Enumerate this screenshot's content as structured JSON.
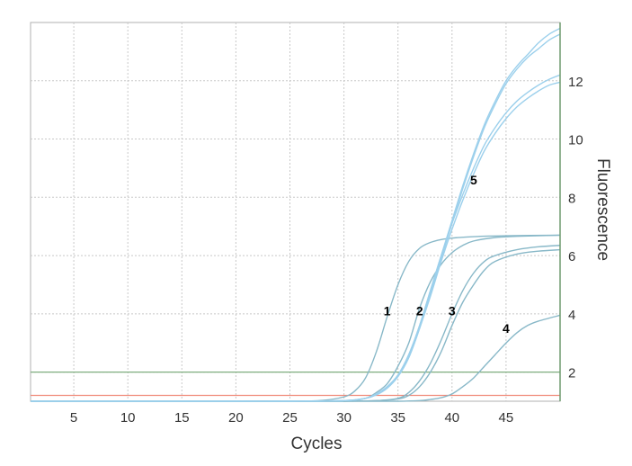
{
  "chart_data": {
    "type": "line",
    "title": "",
    "xlabel": "Cycles",
    "ylabel": "Fluorescence",
    "xlim": [
      1,
      50
    ],
    "ylim": [
      1,
      14
    ],
    "x_ticks": [
      5,
      10,
      15,
      20,
      25,
      30,
      35,
      40,
      45
    ],
    "y_ticks": [
      2,
      4,
      6,
      8,
      10,
      12
    ],
    "grid": true,
    "y_axis_side": "right",
    "threshold_lines": [
      {
        "y": 2.0,
        "color": "#7fae7f"
      },
      {
        "y": 1.2,
        "color": "#f08a7a"
      }
    ],
    "series": [
      {
        "label": "1",
        "color": "#88b8c8",
        "label_pos": [
          34,
          4.1
        ],
        "x": [
          1,
          5,
          10,
          15,
          20,
          25,
          28,
          30,
          31,
          32,
          33,
          34,
          35,
          36,
          37,
          38,
          39,
          40,
          42,
          45,
          50
        ],
        "y": [
          1.0,
          1.0,
          1.0,
          1.0,
          1.0,
          1.0,
          1.03,
          1.15,
          1.35,
          1.8,
          2.7,
          3.9,
          5.0,
          5.8,
          6.25,
          6.45,
          6.55,
          6.6,
          6.65,
          6.68,
          6.7
        ]
      },
      {
        "label": "2",
        "color": "#88b8c8",
        "label_pos": [
          37,
          4.1
        ],
        "x": [
          1,
          5,
          10,
          15,
          20,
          25,
          30,
          32,
          33,
          34,
          35,
          36,
          37,
          38,
          39,
          40,
          41,
          42,
          44,
          46,
          50
        ],
        "y": [
          1.0,
          1.0,
          1.0,
          1.0,
          1.0,
          1.0,
          1.02,
          1.1,
          1.3,
          1.6,
          2.2,
          3.0,
          4.2,
          5.1,
          5.7,
          6.1,
          6.35,
          6.5,
          6.62,
          6.66,
          6.7
        ]
      },
      {
        "label": "3",
        "color": "#88b8c8",
        "label_pos": [
          40,
          4.1
        ],
        "x": [
          1,
          5,
          10,
          15,
          20,
          25,
          30,
          33,
          35,
          36,
          37,
          38,
          39,
          40,
          41,
          42,
          43,
          44,
          46,
          48,
          50
        ],
        "y": [
          1.0,
          1.0,
          1.0,
          1.0,
          1.0,
          1.0,
          1.0,
          1.02,
          1.1,
          1.3,
          1.7,
          2.3,
          3.1,
          4.0,
          4.8,
          5.4,
          5.8,
          6.0,
          6.2,
          6.3,
          6.35
        ]
      },
      {
        "label": "3",
        "color": "#88b8c8",
        "label_pos": null,
        "x": [
          1,
          5,
          10,
          15,
          20,
          25,
          30,
          33,
          35,
          36,
          37,
          38,
          39,
          40,
          41,
          42,
          43,
          44,
          46,
          48,
          50
        ],
        "y": [
          1.0,
          1.0,
          1.0,
          1.0,
          1.0,
          1.0,
          1.0,
          1.02,
          1.08,
          1.2,
          1.5,
          2.0,
          2.7,
          3.6,
          4.4,
          5.0,
          5.5,
          5.8,
          6.05,
          6.15,
          6.2
        ]
      },
      {
        "label": "4",
        "color": "#88b8c8",
        "label_pos": [
          45,
          3.5
        ],
        "x": [
          1,
          5,
          10,
          15,
          20,
          25,
          30,
          35,
          37,
          38,
          39,
          40,
          41,
          42,
          43,
          44,
          45,
          46,
          47,
          48,
          50
        ],
        "y": [
          1.0,
          1.0,
          1.0,
          1.0,
          1.0,
          1.0,
          1.0,
          1.0,
          1.02,
          1.06,
          1.12,
          1.25,
          1.5,
          1.8,
          2.2,
          2.6,
          3.0,
          3.35,
          3.6,
          3.75,
          3.95
        ]
      },
      {
        "label": "5",
        "color": "#9cd0ec",
        "label_pos": [
          42,
          8.6
        ],
        "x": [
          1,
          5,
          10,
          15,
          20,
          25,
          30,
          32,
          33,
          34,
          35,
          36,
          37,
          38,
          39,
          40,
          41,
          42,
          43,
          44,
          45,
          46,
          47,
          48,
          49,
          50
        ],
        "y": [
          1.0,
          1.0,
          1.0,
          1.0,
          1.0,
          1.0,
          1.02,
          1.1,
          1.25,
          1.5,
          1.9,
          2.6,
          3.6,
          4.8,
          6.0,
          7.2,
          8.4,
          9.5,
          10.5,
          11.3,
          12.0,
          12.5,
          12.9,
          13.3,
          13.6,
          13.8
        ]
      },
      {
        "label": "5",
        "color": "#9cd0ec",
        "label_pos": null,
        "x": [
          1,
          5,
          10,
          15,
          20,
          25,
          30,
          32,
          33,
          34,
          35,
          36,
          37,
          38,
          39,
          40,
          41,
          42,
          43,
          44,
          45,
          46,
          47,
          48,
          49,
          50
        ],
        "y": [
          1.0,
          1.0,
          1.0,
          1.0,
          1.0,
          1.0,
          1.02,
          1.1,
          1.22,
          1.45,
          1.85,
          2.5,
          3.5,
          4.7,
          5.9,
          7.1,
          8.3,
          9.4,
          10.4,
          11.2,
          11.9,
          12.4,
          12.8,
          13.1,
          13.4,
          13.6
        ]
      },
      {
        "label": "5",
        "color": "#9cd0ec",
        "label_pos": null,
        "x": [
          1,
          5,
          10,
          15,
          20,
          25,
          30,
          32,
          33,
          34,
          35,
          36,
          37,
          38,
          39,
          40,
          41,
          42,
          43,
          44,
          45,
          46,
          47,
          48,
          49,
          50
        ],
        "y": [
          1.0,
          1.0,
          1.0,
          1.0,
          1.0,
          1.0,
          1.02,
          1.1,
          1.25,
          1.5,
          1.9,
          2.6,
          3.6,
          4.8,
          6.0,
          7.1,
          8.1,
          9.0,
          9.8,
          10.4,
          10.9,
          11.3,
          11.6,
          11.85,
          12.05,
          12.2
        ]
      },
      {
        "label": "5",
        "color": "#9cd0ec",
        "label_pos": null,
        "x": [
          1,
          5,
          10,
          15,
          20,
          25,
          30,
          32,
          33,
          34,
          35,
          36,
          37,
          38,
          39,
          40,
          41,
          42,
          43,
          44,
          45,
          46,
          47,
          48,
          49,
          50
        ],
        "y": [
          1.0,
          1.0,
          1.0,
          1.0,
          1.0,
          1.0,
          1.02,
          1.1,
          1.22,
          1.45,
          1.85,
          2.5,
          3.5,
          4.6,
          5.8,
          6.9,
          7.9,
          8.8,
          9.6,
          10.2,
          10.7,
          11.1,
          11.4,
          11.65,
          11.85,
          11.95
        ]
      }
    ]
  }
}
